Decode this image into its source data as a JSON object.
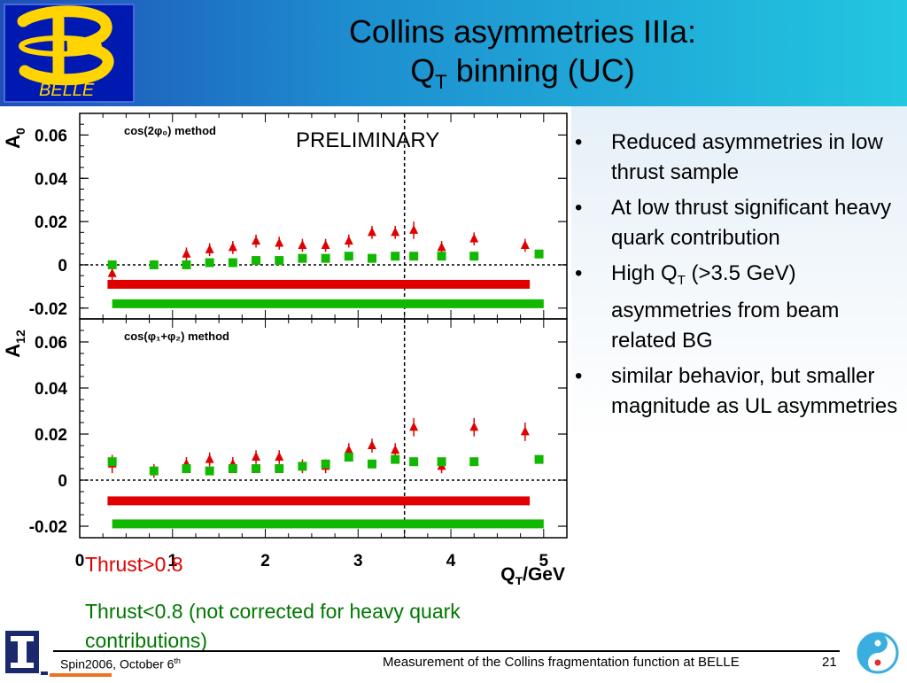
{
  "header": {
    "title_line1": "Collins asymmetries IIIa:",
    "title_q": "Q",
    "title_q_sub": "T",
    "title_rest": " binning (UC)",
    "logo_text": "BELLE"
  },
  "annotations": {
    "preliminary": "PRELIMINARY",
    "thrust_high": "Thrust>0.8",
    "thrust_low": "Thrust<0.8 (not corrected for heavy quark contributions)"
  },
  "bullets": {
    "b1": "Reduced asymmetries in low thrust sample",
    "b2": "At low thrust significant heavy quark contribution",
    "b3_pre": "High Q",
    "b3_sub": "T",
    "b3_post": " (>3.5 GeV) asymmetries from beam related BG",
    "b4": "similar behavior, but smaller magnitude as UL asymmetries"
  },
  "footer": {
    "conference": "Spin2006, October 6",
    "conference_sup": "th",
    "talk_title": "Measurement of the Collins fragmentation function at BELLE",
    "page": "21"
  },
  "colors": {
    "thrust_high": "#e00000",
    "thrust_low": "#12b800",
    "header_start": "#1f4fb8",
    "header_end": "#22c7e0"
  },
  "chart_data": [
    {
      "type": "scatter",
      "ylabel": "A",
      "ylabel_sub": "0",
      "method_label": "cos(2φ₀) method",
      "xlim": [
        0,
        5.25
      ],
      "ylim": [
        -0.025,
        0.07
      ],
      "yticks": [
        0.06,
        0.04,
        0.02,
        0,
        -0.02
      ],
      "ytick_labels": [
        "0.06",
        "0.04",
        "0.02",
        "0",
        "-0.02"
      ],
      "vline": 3.5,
      "series": [
        {
          "name": "Thrust>0.8",
          "marker": "triangle",
          "color": "#e00000",
          "x": [
            0.35,
            0.8,
            1.15,
            1.4,
            1.65,
            1.9,
            2.15,
            2.4,
            2.65,
            2.9,
            3.15,
            3.4,
            3.6,
            3.9,
            4.25,
            4.8
          ],
          "y": [
            -0.004,
            0.0,
            0.005,
            0.007,
            0.008,
            0.011,
            0.01,
            0.009,
            0.009,
            0.011,
            0.015,
            0.015,
            0.016,
            0.008,
            0.012,
            0.009
          ],
          "err": [
            0.003,
            0.002,
            0.003,
            0.003,
            0.003,
            0.003,
            0.003,
            0.003,
            0.003,
            0.003,
            0.003,
            0.003,
            0.004,
            0.003,
            0.003,
            0.003
          ],
          "syst": -0.009,
          "syst_range": [
            0.3,
            4.85
          ]
        },
        {
          "name": "Thrust<0.8",
          "marker": "square",
          "color": "#12b800",
          "x": [
            0.35,
            0.8,
            1.15,
            1.4,
            1.65,
            1.9,
            2.15,
            2.4,
            2.65,
            2.9,
            3.15,
            3.4,
            3.6,
            3.9,
            4.25,
            4.95
          ],
          "y": [
            0.0,
            0.0,
            0.0,
            0.001,
            0.001,
            0.002,
            0.002,
            0.003,
            0.003,
            0.004,
            0.003,
            0.004,
            0.004,
            0.004,
            0.004,
            0.005
          ],
          "err": [
            0.001,
            0.001,
            0.001,
            0.001,
            0.001,
            0.001,
            0.001,
            0.001,
            0.001,
            0.001,
            0.001,
            0.001,
            0.001,
            0.001,
            0.001,
            0.001
          ],
          "syst": -0.018,
          "syst_range": [
            0.35,
            5.0
          ]
        }
      ]
    },
    {
      "type": "scatter",
      "ylabel": "A",
      "ylabel_sub": "12",
      "method_label": "cos(φ₁+φ₂) method",
      "xlabel": "Q",
      "xlabel_sub": "T",
      "xlabel_post": "/GeV",
      "xlim": [
        0,
        5.25
      ],
      "ylim": [
        -0.025,
        0.07
      ],
      "xticks": [
        0,
        1,
        2,
        3,
        4,
        5
      ],
      "xtick_labels": [
        "0",
        "1",
        "2",
        "3",
        "4",
        "5"
      ],
      "yticks": [
        0.06,
        0.04,
        0.02,
        0,
        -0.02
      ],
      "ytick_labels": [
        "0.06",
        "0.04",
        "0.02",
        "0",
        "-0.02"
      ],
      "vline": 3.5,
      "series": [
        {
          "name": "Thrust>0.8",
          "marker": "triangle",
          "color": "#e00000",
          "x": [
            0.35,
            0.8,
            1.15,
            1.4,
            1.65,
            1.9,
            2.15,
            2.4,
            2.65,
            2.9,
            3.15,
            3.4,
            3.6,
            3.9,
            4.25,
            4.8
          ],
          "y": [
            0.007,
            0.004,
            0.007,
            0.009,
            0.007,
            0.01,
            0.01,
            0.006,
            0.006,
            0.013,
            0.015,
            0.013,
            0.023,
            0.006,
            0.023,
            0.021
          ],
          "err": [
            0.004,
            0.003,
            0.003,
            0.003,
            0.003,
            0.003,
            0.003,
            0.003,
            0.003,
            0.003,
            0.003,
            0.003,
            0.004,
            0.003,
            0.004,
            0.004
          ],
          "syst": -0.009,
          "syst_range": [
            0.3,
            4.85
          ]
        },
        {
          "name": "Thrust<0.8",
          "marker": "square",
          "color": "#12b800",
          "x": [
            0.35,
            0.8,
            1.15,
            1.4,
            1.65,
            1.9,
            2.15,
            2.4,
            2.65,
            2.9,
            3.15,
            3.4,
            3.6,
            3.9,
            4.25,
            4.95
          ],
          "y": [
            0.008,
            0.004,
            0.005,
            0.004,
            0.005,
            0.005,
            0.005,
            0.006,
            0.007,
            0.01,
            0.007,
            0.009,
            0.008,
            0.008,
            0.008,
            0.009
          ],
          "err": [
            0.001,
            0.001,
            0.001,
            0.001,
            0.001,
            0.001,
            0.001,
            0.001,
            0.001,
            0.001,
            0.001,
            0.001,
            0.001,
            0.001,
            0.001,
            0.001
          ],
          "syst": -0.019,
          "syst_range": [
            0.35,
            5.0
          ]
        }
      ]
    }
  ]
}
